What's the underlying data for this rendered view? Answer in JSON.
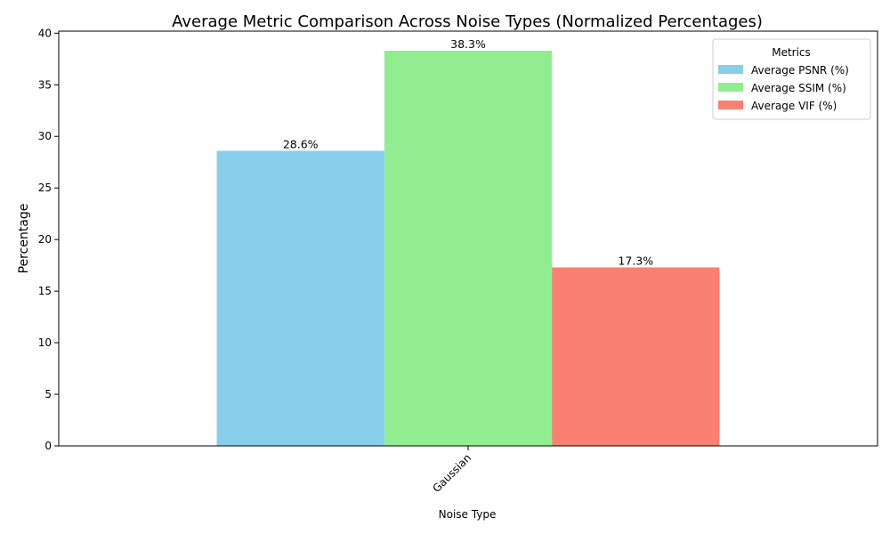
{
  "chart_data": {
    "type": "bar",
    "title": "Average Metric Comparison Across Noise Types (Normalized Percentages)",
    "xlabel": "Noise Type",
    "ylabel": "Percentage",
    "categories": [
      "Gaussian"
    ],
    "series": [
      {
        "name": "Average PSNR (%)",
        "values": [
          28.6
        ],
        "color": "#87ceeb",
        "label": "28.6%"
      },
      {
        "name": "Average SSIM (%)",
        "values": [
          38.3
        ],
        "color": "#90ee90",
        "label": "38.3%"
      },
      {
        "name": "Average VIF (%)",
        "values": [
          17.3
        ],
        "color": "#fa8072",
        "label": "17.3%"
      }
    ],
    "ylim": [
      0,
      40.2
    ],
    "yticks": [
      0,
      5,
      10,
      15,
      20,
      25,
      30,
      35,
      40
    ],
    "grid": false,
    "legend": {
      "title": "Metrics",
      "placement": "top-right"
    },
    "xtick_rotation": 45
  }
}
